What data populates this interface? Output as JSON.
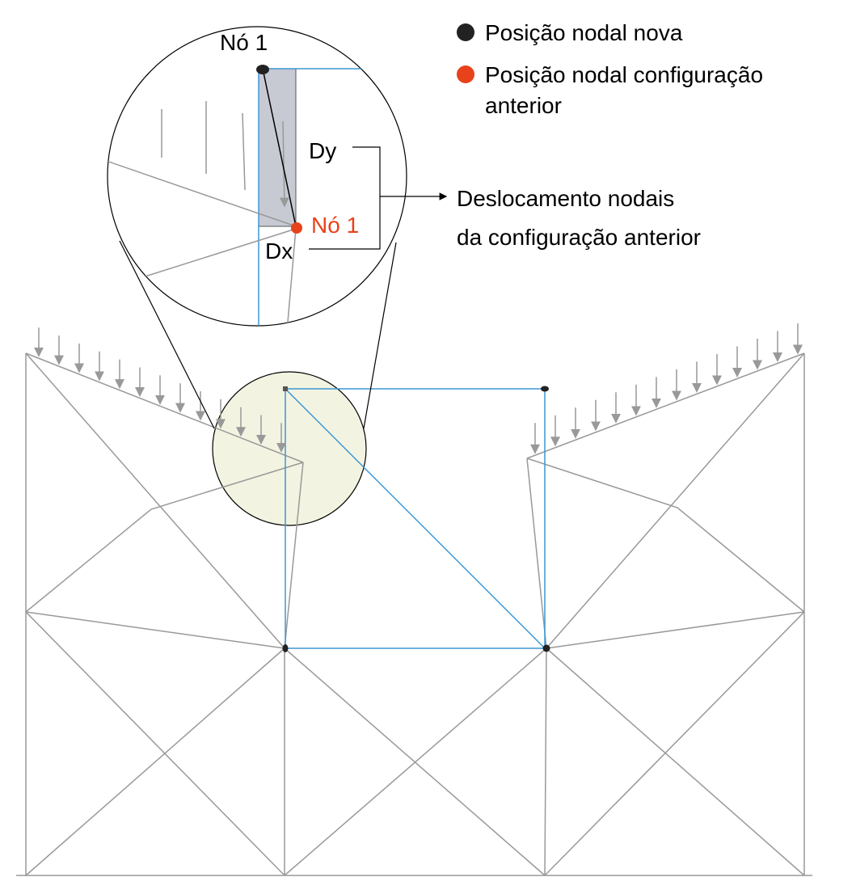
{
  "legend": {
    "items": [
      {
        "lines": [
          "Posição nodal nova"
        ]
      },
      {
        "lines": [
          "Posição nodal configuração",
          "anterior"
        ]
      }
    ]
  },
  "zoom": {
    "node_new": "Nó 1",
    "node_old": "Nó 1",
    "dy": "Dy",
    "dx": "Dx"
  },
  "annotation": {
    "lines": [
      "Deslocamento nodais",
      "da configuração anterior"
    ]
  }
}
